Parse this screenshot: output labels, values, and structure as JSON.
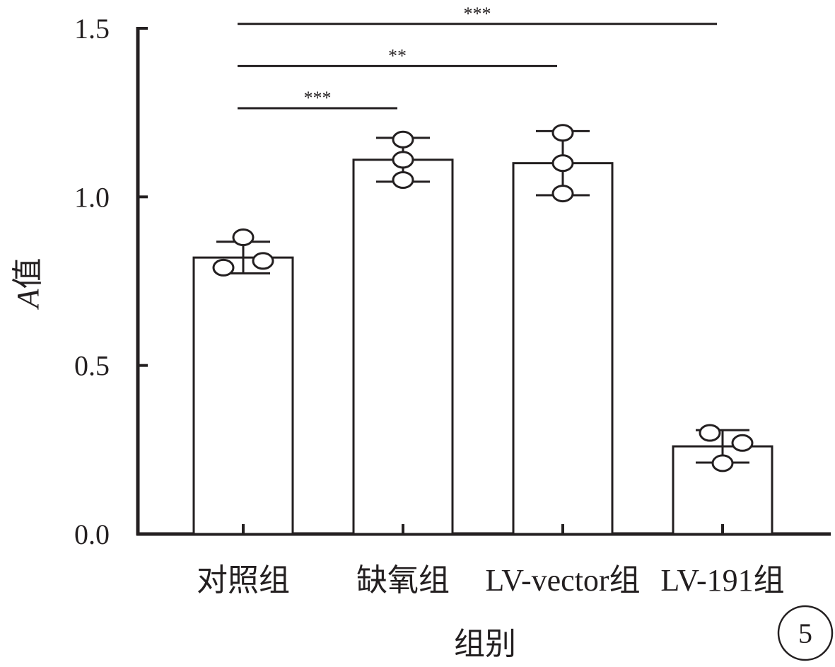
{
  "chart_data": {
    "type": "bar",
    "categories": [
      "对照组",
      "缺氧组",
      "LV-vector组",
      "LV-191组"
    ],
    "values": [
      0.82,
      1.11,
      1.1,
      0.26
    ],
    "errors": [
      0.047,
      0.065,
      0.095,
      0.048
    ],
    "points": [
      [
        0.88,
        0.79,
        0.81
      ],
      [
        1.17,
        1.11,
        1.05
      ],
      [
        1.19,
        1.1,
        1.01
      ],
      [
        0.3,
        0.27,
        0.21
      ]
    ],
    "title": "",
    "xlabel": "组别",
    "ylabel_italic": "A",
    "ylabel_rest": "值",
    "ylim": [
      0,
      1.5
    ],
    "yticks": [
      "0.0",
      "0.5",
      "1.0",
      "1.5"
    ],
    "significance": [
      {
        "from": 0,
        "to": 1,
        "label": "***",
        "y": 1.263
      },
      {
        "from": 0,
        "to": 2,
        "label": "**",
        "y": 1.388
      },
      {
        "from": 0,
        "to": 3,
        "label": "***",
        "y": 1.513
      }
    ],
    "grid": false,
    "legend": "none",
    "panel_label": "5",
    "colors": {
      "ink": "#231f20",
      "bar_fill": "#ffffff"
    }
  }
}
